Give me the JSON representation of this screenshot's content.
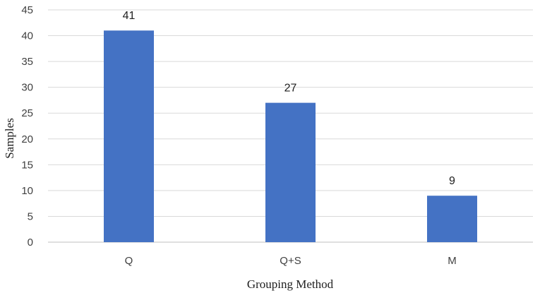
{
  "chart_data": {
    "type": "bar",
    "categories": [
      "Q",
      "Q+S",
      "M"
    ],
    "values": [
      41,
      27,
      9
    ],
    "xlabel": "Grouping Method",
    "ylabel": "Samples",
    "ylim": [
      0,
      45
    ],
    "yticks": [
      0,
      5,
      10,
      15,
      20,
      25,
      30,
      35,
      40,
      45
    ],
    "grid": true,
    "data_labels": true,
    "colors": {
      "bar": "#4472C4"
    }
  }
}
